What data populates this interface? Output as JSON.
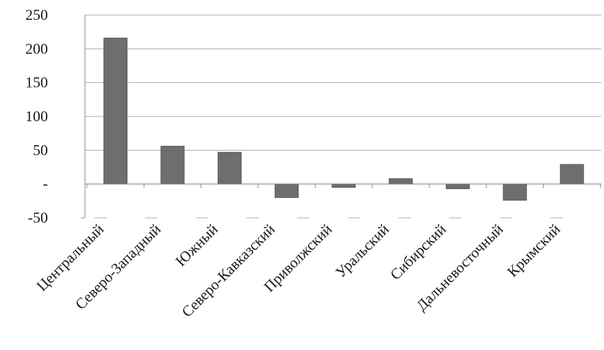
{
  "chart_data": {
    "type": "bar",
    "title": "",
    "xlabel": "",
    "ylabel": "",
    "ylim": [
      -50,
      250
    ],
    "yticks": [
      {
        "value": 250,
        "label": "250"
      },
      {
        "value": 200,
        "label": "200"
      },
      {
        "value": 150,
        "label": "150"
      },
      {
        "value": 100,
        "label": "100"
      },
      {
        "value": 50,
        "label": "50"
      },
      {
        "value": 0,
        "label": "-"
      },
      {
        "value": -50,
        "label": "-50"
      }
    ],
    "grid": true,
    "legend": "none",
    "categories": [
      "Центральный",
      "Северо-Западный",
      "Южный",
      "Северо-Кавказский",
      "Приволжский",
      "Уральский",
      "Сибирский",
      "Дальневосточный",
      "Крымский"
    ],
    "values": [
      216,
      56,
      47,
      -20,
      -5,
      8,
      -7,
      -24,
      29
    ],
    "colors": {
      "bar": "#6e6e70",
      "bar_edge": "#5a5a5c",
      "grid": "#a8a8a8",
      "axis": "#8a8a8a",
      "text": "#1a1a1a"
    }
  }
}
